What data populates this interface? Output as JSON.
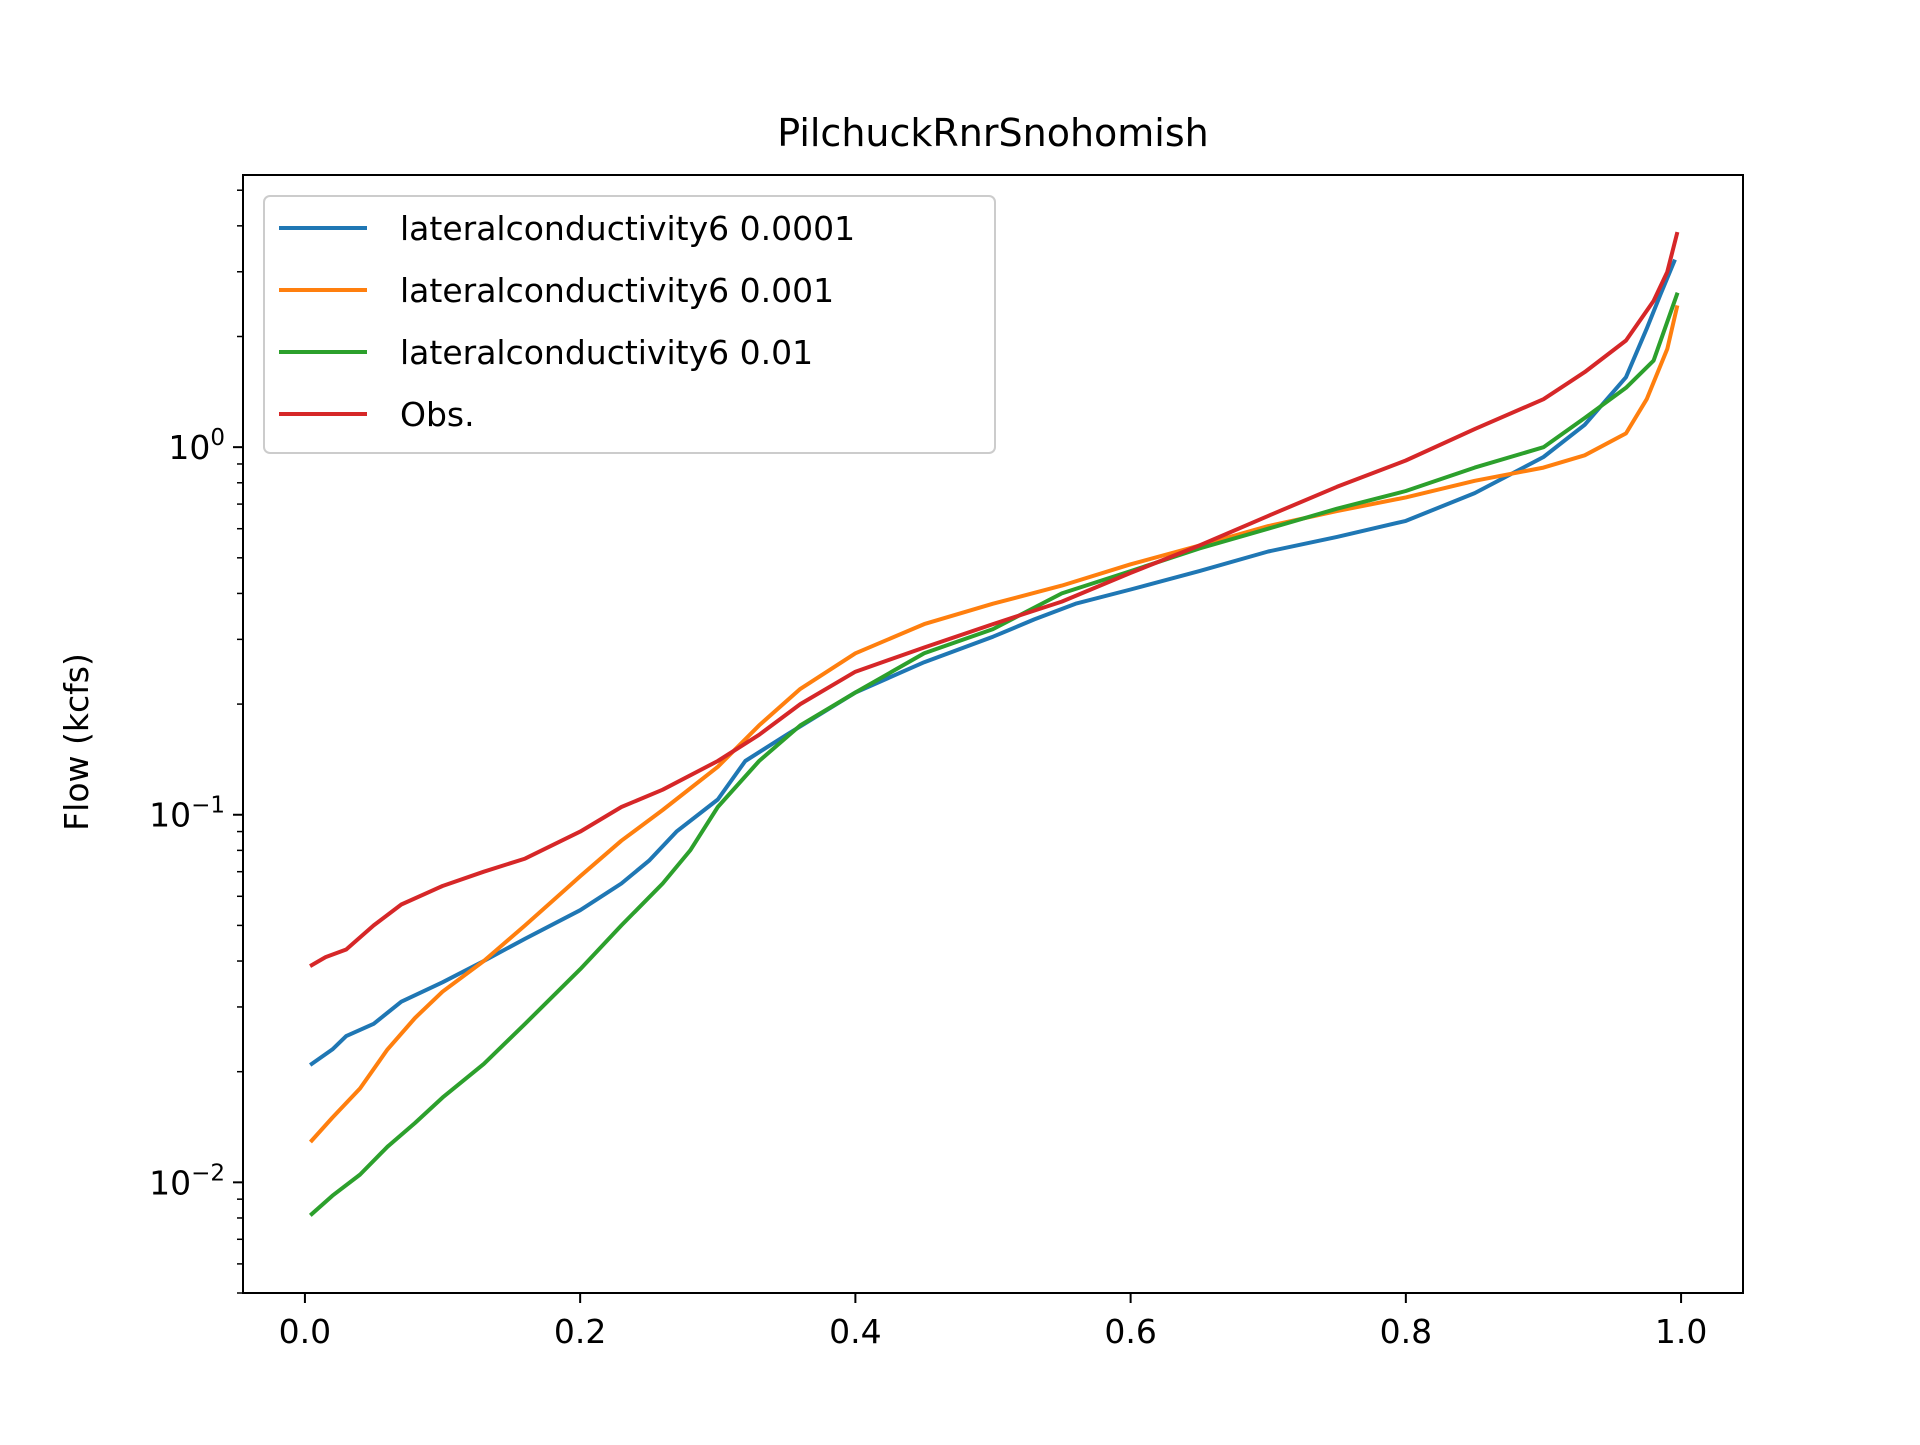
{
  "chart_data": {
    "type": "line",
    "title": "PilchuckRnrSnohomish",
    "xlabel": "",
    "ylabel": "Flow (kcfs)",
    "xlim": [
      -0.045,
      1.045
    ],
    "ylim": [
      0.005,
      5.5
    ],
    "yscale": "log",
    "grid": false,
    "legend_position": "upper left",
    "x_ticks": [
      {
        "value": 0.0,
        "label": "0.0"
      },
      {
        "value": 0.2,
        "label": "0.2"
      },
      {
        "value": 0.4,
        "label": "0.4"
      },
      {
        "value": 0.6,
        "label": "0.6"
      },
      {
        "value": 0.8,
        "label": "0.8"
      },
      {
        "value": 1.0,
        "label": "1.0"
      }
    ],
    "y_ticks": [
      {
        "value": 1.0,
        "base": "10",
        "exp": "0"
      },
      {
        "value": 0.1,
        "base": "10",
        "exp": "−1"
      },
      {
        "value": 0.01,
        "base": "10",
        "exp": "−2"
      }
    ],
    "series": [
      {
        "name": "lateralconductivity6 0.0001",
        "color": "#1f77b4",
        "points": [
          [
            0.005,
            0.021
          ],
          [
            0.02,
            0.023
          ],
          [
            0.03,
            0.025
          ],
          [
            0.05,
            0.027
          ],
          [
            0.07,
            0.031
          ],
          [
            0.1,
            0.035
          ],
          [
            0.13,
            0.04
          ],
          [
            0.16,
            0.046
          ],
          [
            0.2,
            0.055
          ],
          [
            0.23,
            0.065
          ],
          [
            0.25,
            0.075
          ],
          [
            0.27,
            0.09
          ],
          [
            0.3,
            0.11
          ],
          [
            0.32,
            0.14
          ],
          [
            0.35,
            0.165
          ],
          [
            0.4,
            0.215
          ],
          [
            0.45,
            0.26
          ],
          [
            0.5,
            0.305
          ],
          [
            0.53,
            0.34
          ],
          [
            0.56,
            0.375
          ],
          [
            0.6,
            0.41
          ],
          [
            0.65,
            0.46
          ],
          [
            0.7,
            0.52
          ],
          [
            0.75,
            0.57
          ],
          [
            0.8,
            0.63
          ],
          [
            0.85,
            0.75
          ],
          [
            0.9,
            0.94
          ],
          [
            0.93,
            1.15
          ],
          [
            0.96,
            1.55
          ],
          [
            0.975,
            2.1
          ],
          [
            0.985,
            2.6
          ],
          [
            0.995,
            3.2
          ]
        ]
      },
      {
        "name": "lateralconductivity6 0.001",
        "color": "#ff7f0e",
        "points": [
          [
            0.005,
            0.013
          ],
          [
            0.02,
            0.015
          ],
          [
            0.04,
            0.018
          ],
          [
            0.06,
            0.023
          ],
          [
            0.08,
            0.028
          ],
          [
            0.1,
            0.033
          ],
          [
            0.13,
            0.04
          ],
          [
            0.16,
            0.05
          ],
          [
            0.2,
            0.068
          ],
          [
            0.23,
            0.085
          ],
          [
            0.26,
            0.103
          ],
          [
            0.3,
            0.135
          ],
          [
            0.33,
            0.175
          ],
          [
            0.36,
            0.22
          ],
          [
            0.4,
            0.275
          ],
          [
            0.45,
            0.33
          ],
          [
            0.5,
            0.375
          ],
          [
            0.55,
            0.42
          ],
          [
            0.6,
            0.48
          ],
          [
            0.65,
            0.54
          ],
          [
            0.7,
            0.61
          ],
          [
            0.75,
            0.67
          ],
          [
            0.8,
            0.73
          ],
          [
            0.85,
            0.81
          ],
          [
            0.9,
            0.88
          ],
          [
            0.93,
            0.95
          ],
          [
            0.96,
            1.09
          ],
          [
            0.975,
            1.35
          ],
          [
            0.99,
            1.85
          ],
          [
            0.997,
            2.4
          ]
        ]
      },
      {
        "name": "lateralconductivity6 0.01",
        "color": "#2ca02c",
        "points": [
          [
            0.005,
            0.0082
          ],
          [
            0.02,
            0.0092
          ],
          [
            0.04,
            0.0105
          ],
          [
            0.06,
            0.0125
          ],
          [
            0.08,
            0.0145
          ],
          [
            0.1,
            0.017
          ],
          [
            0.13,
            0.021
          ],
          [
            0.16,
            0.027
          ],
          [
            0.2,
            0.038
          ],
          [
            0.23,
            0.05
          ],
          [
            0.26,
            0.065
          ],
          [
            0.28,
            0.08
          ],
          [
            0.3,
            0.105
          ],
          [
            0.33,
            0.14
          ],
          [
            0.36,
            0.175
          ],
          [
            0.4,
            0.215
          ],
          [
            0.45,
            0.275
          ],
          [
            0.5,
            0.32
          ],
          [
            0.55,
            0.4
          ],
          [
            0.6,
            0.46
          ],
          [
            0.65,
            0.53
          ],
          [
            0.7,
            0.6
          ],
          [
            0.75,
            0.68
          ],
          [
            0.8,
            0.76
          ],
          [
            0.85,
            0.88
          ],
          [
            0.9,
            1.0
          ],
          [
            0.93,
            1.2
          ],
          [
            0.96,
            1.45
          ],
          [
            0.98,
            1.72
          ],
          [
            0.997,
            2.6
          ]
        ]
      },
      {
        "name": "Obs.",
        "color": "#d62728",
        "points": [
          [
            0.005,
            0.039
          ],
          [
            0.015,
            0.041
          ],
          [
            0.03,
            0.043
          ],
          [
            0.05,
            0.05
          ],
          [
            0.07,
            0.057
          ],
          [
            0.1,
            0.064
          ],
          [
            0.13,
            0.07
          ],
          [
            0.16,
            0.076
          ],
          [
            0.2,
            0.09
          ],
          [
            0.23,
            0.105
          ],
          [
            0.26,
            0.117
          ],
          [
            0.3,
            0.14
          ],
          [
            0.33,
            0.165
          ],
          [
            0.36,
            0.2
          ],
          [
            0.4,
            0.245
          ],
          [
            0.45,
            0.285
          ],
          [
            0.5,
            0.33
          ],
          [
            0.55,
            0.38
          ],
          [
            0.6,
            0.455
          ],
          [
            0.65,
            0.54
          ],
          [
            0.7,
            0.65
          ],
          [
            0.75,
            0.78
          ],
          [
            0.8,
            0.92
          ],
          [
            0.85,
            1.12
          ],
          [
            0.9,
            1.35
          ],
          [
            0.93,
            1.6
          ],
          [
            0.96,
            1.95
          ],
          [
            0.98,
            2.5
          ],
          [
            0.99,
            3.0
          ],
          [
            0.997,
            3.8
          ]
        ]
      }
    ]
  }
}
